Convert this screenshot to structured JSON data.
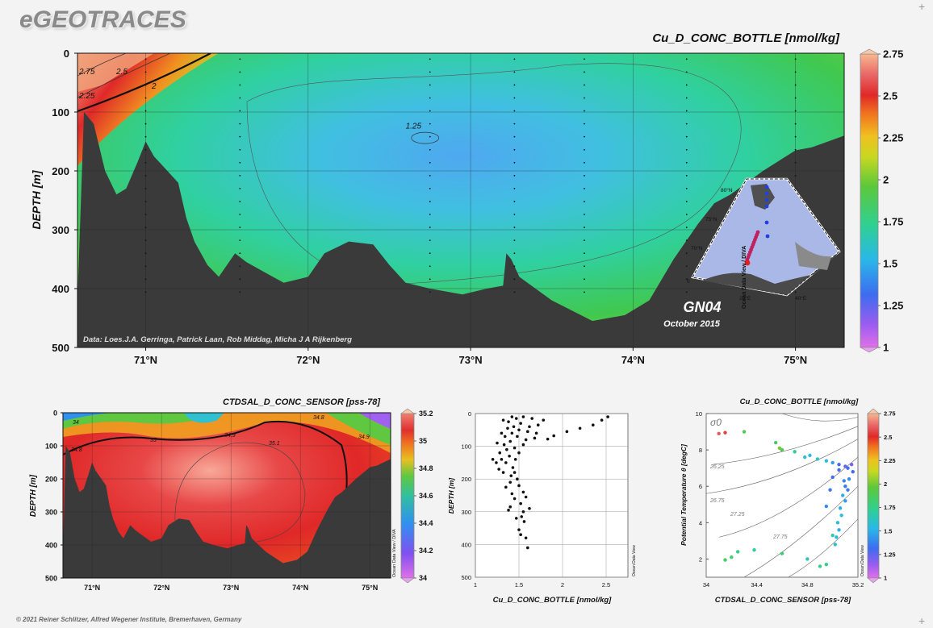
{
  "app_title": "eGEOTRACES",
  "copyright": "© 2021 Reiner Schlitzer, Alfred Wegener Institute, Bremerhaven, Germany",
  "colors": {
    "land": "#3a3a3a",
    "background": "#f3f3f3"
  },
  "chart_data": [
    {
      "id": "main-section",
      "type": "heatmap",
      "title": "Cu_D_CONC_BOTTLE [nmol/kg]",
      "ylabel": "DEPTH [m]",
      "xlabel": "",
      "x_ticks": [
        "71°N",
        "72°N",
        "73°N",
        "74°N",
        "75°N"
      ],
      "x_tick_values": [
        71,
        72,
        73,
        74,
        75
      ],
      "xlim": [
        70.58,
        75.3
      ],
      "y_ticks": [
        "0",
        "100",
        "200",
        "300",
        "400",
        "500"
      ],
      "y_tick_values": [
        0,
        100,
        200,
        300,
        400,
        500
      ],
      "ylim": [
        0,
        500
      ],
      "colorbar_ticks": [
        "1",
        "1.25",
        "1.5",
        "1.75",
        "2",
        "2.25",
        "2.5",
        "2.75"
      ],
      "colorbar_values": [
        1,
        1.25,
        1.5,
        1.75,
        2,
        2.25,
        2.5,
        2.75
      ],
      "contour_labels": [
        "2.75",
        "2.5",
        "2.25",
        "2",
        "1.25"
      ],
      "station_latitudes": [
        71,
        71.58,
        72.75,
        73.27,
        73.7,
        74.33,
        75.0
      ],
      "bottom_profile": [
        [
          70.58,
          420
        ],
        [
          70.62,
          100
        ],
        [
          70.68,
          120
        ],
        [
          70.75,
          200
        ],
        [
          70.82,
          240
        ],
        [
          70.88,
          230
        ],
        [
          70.95,
          185
        ],
        [
          71.0,
          150
        ],
        [
          71.05,
          175
        ],
        [
          71.15,
          205
        ],
        [
          71.2,
          220
        ],
        [
          71.25,
          280
        ],
        [
          71.3,
          320
        ],
        [
          71.38,
          360
        ],
        [
          71.45,
          380
        ],
        [
          71.55,
          340
        ],
        [
          71.62,
          355
        ],
        [
          71.75,
          375
        ],
        [
          71.85,
          390
        ],
        [
          72.0,
          380
        ],
        [
          72.1,
          340
        ],
        [
          72.25,
          320
        ],
        [
          72.4,
          325
        ],
        [
          72.5,
          360
        ],
        [
          72.6,
          390
        ],
        [
          72.75,
          400
        ],
        [
          72.95,
          410
        ],
        [
          73.1,
          400
        ],
        [
          73.2,
          395
        ],
        [
          73.22,
          340
        ],
        [
          73.25,
          350
        ],
        [
          73.3,
          380
        ],
        [
          73.35,
          390
        ],
        [
          73.5,
          420
        ],
        [
          73.75,
          455
        ],
        [
          73.95,
          445
        ],
        [
          74.1,
          420
        ],
        [
          74.25,
          350
        ],
        [
          74.4,
          290
        ],
        [
          74.5,
          255
        ],
        [
          74.6,
          240
        ],
        [
          74.8,
          200
        ],
        [
          75.0,
          165
        ],
        [
          75.1,
          160
        ],
        [
          75.3,
          140
        ]
      ],
      "source": "Data: Loes.J.A. Gerringa, Patrick Laan, Rob Middag, Micha J A Rijkenberg",
      "cruise": "GN04",
      "cruise_date": "October 2015",
      "inset_map_labels": [
        "80°N",
        "75°N",
        "70°N",
        "20°E",
        "40°E",
        "0"
      ],
      "vertical_credit": "Ocean Data View / DIVA"
    },
    {
      "id": "salinity-section",
      "type": "heatmap",
      "title": "CTDSAL_D_CONC_SENSOR [pss-78]",
      "ylabel": "DEPTH [m]",
      "xlabel": "",
      "x_ticks": [
        "71°N",
        "72°N",
        "73°N",
        "74°N",
        "75°N"
      ],
      "x_tick_values": [
        71,
        72,
        73,
        74,
        75
      ],
      "xlim": [
        70.58,
        75.3
      ],
      "y_ticks": [
        "0",
        "100",
        "200",
        "300",
        "400",
        "500"
      ],
      "y_tick_values": [
        0,
        100,
        200,
        300,
        400,
        500
      ],
      "ylim": [
        0,
        500
      ],
      "colorbar_ticks": [
        "34",
        "34.2",
        "34.4",
        "34.6",
        "34.8",
        "35",
        "35.2"
      ],
      "colorbar_values": [
        34,
        34.2,
        34.4,
        34.6,
        34.8,
        35,
        35.2
      ],
      "contour_labels": [
        "34",
        "34.8",
        "35",
        "34.9",
        "35.1",
        "34.9",
        "34.8"
      ],
      "vertical_credit": "Ocean Data View / DIVA"
    },
    {
      "id": "depth-profile",
      "type": "scatter",
      "title": "",
      "xlabel": "Cu_D_CONC_BOTTLE [nmol/kg]",
      "ylabel": "DEPTH [m]",
      "xlim": [
        1,
        2.75
      ],
      "ylim": [
        0,
        500
      ],
      "x_ticks": [
        "1",
        "1.5",
        "2",
        "2.5"
      ],
      "x_tick_values": [
        1,
        1.5,
        2,
        2.5
      ],
      "y_ticks": [
        "0",
        "100",
        "200",
        "300",
        "400",
        "500"
      ],
      "y_tick_values": [
        0,
        100,
        200,
        300,
        400,
        500
      ],
      "points": [
        [
          2.52,
          10
        ],
        [
          2.45,
          20
        ],
        [
          2.35,
          35
        ],
        [
          2.2,
          45
        ],
        [
          2.05,
          55
        ],
        [
          1.9,
          68
        ],
        [
          1.83,
          78
        ],
        [
          1.78,
          20
        ],
        [
          1.72,
          35
        ],
        [
          1.7,
          60
        ],
        [
          1.68,
          75
        ],
        [
          1.65,
          15
        ],
        [
          1.62,
          40
        ],
        [
          1.6,
          55
        ],
        [
          1.58,
          80
        ],
        [
          1.55,
          10
        ],
        [
          1.55,
          95
        ],
        [
          1.52,
          30
        ],
        [
          1.5,
          50
        ],
        [
          1.5,
          120
        ],
        [
          1.48,
          70
        ],
        [
          1.47,
          15
        ],
        [
          1.46,
          140
        ],
        [
          1.45,
          105
        ],
        [
          1.44,
          40
        ],
        [
          1.43,
          165
        ],
        [
          1.42,
          60
        ],
        [
          1.42,
          10
        ],
        [
          1.41,
          190
        ],
        [
          1.4,
          85
        ],
        [
          1.39,
          130
        ],
        [
          1.38,
          25
        ],
        [
          1.37,
          45
        ],
        [
          1.36,
          110
        ],
        [
          1.35,
          150
        ],
        [
          1.34,
          70
        ],
        [
          1.33,
          95
        ],
        [
          1.32,
          20
        ],
        [
          1.32,
          180
        ],
        [
          1.3,
          140
        ],
        [
          1.3,
          60
        ],
        [
          1.28,
          120
        ],
        [
          1.27,
          170
        ],
        [
          1.25,
          90
        ],
        [
          1.24,
          150
        ],
        [
          1.2,
          140
        ],
        [
          1.4,
          210
        ],
        [
          1.42,
          245
        ],
        [
          1.45,
          260
        ],
        [
          1.38,
          295
        ],
        [
          1.4,
          285
        ],
        [
          1.5,
          220
        ],
        [
          1.52,
          275
        ],
        [
          1.55,
          300
        ],
        [
          1.56,
          330
        ],
        [
          1.5,
          355
        ],
        [
          1.52,
          370
        ],
        [
          1.58,
          380
        ],
        [
          1.6,
          410
        ],
        [
          1.55,
          240
        ],
        [
          1.48,
          200
        ],
        [
          1.45,
          180
        ],
        [
          1.35,
          225
        ],
        [
          1.47,
          320
        ],
        [
          1.53,
          315
        ],
        [
          1.58,
          255
        ],
        [
          1.62,
          290
        ]
      ],
      "vertical_credit": "Ocean Data View"
    },
    {
      "id": "ts-diagram",
      "type": "scatter",
      "title": "Cu_D_CONC_BOTTLE [nmol/kg]",
      "xlabel": "CTDSAL_D_CONC_SENSOR [pss-78]",
      "ylabel": "Potential Temperature θ [degC]",
      "xlim": [
        34,
        35.2
      ],
      "ylim": [
        1,
        10
      ],
      "x_ticks": [
        "34",
        "34.4",
        "34.8",
        "35.2"
      ],
      "x_tick_values": [
        34,
        34.4,
        34.8,
        35.2
      ],
      "y_ticks": [
        "2",
        "4",
        "6",
        "8",
        "10"
      ],
      "y_tick_values": [
        2,
        4,
        6,
        8,
        10
      ],
      "colorbar_ticks": [
        "1",
        "1.25",
        "1.5",
        "1.75",
        "2",
        "2.25",
        "2.5",
        "2.75"
      ],
      "colorbar_values": [
        1,
        1.25,
        1.5,
        1.75,
        2,
        2.25,
        2.5,
        2.75
      ],
      "isopycnal_labels": [
        "σ0",
        "26.25",
        "26.75",
        "27.25",
        "27.75"
      ],
      "points": [
        [
          34.1,
          8.9,
          2.6
        ],
        [
          34.15,
          8.95,
          2.55
        ],
        [
          34.3,
          9.0,
          1.9
        ],
        [
          34.55,
          8.4,
          1.85
        ],
        [
          34.58,
          8.1,
          2.0
        ],
        [
          34.7,
          7.9,
          1.7
        ],
        [
          34.78,
          7.6,
          1.6
        ],
        [
          34.82,
          7.7,
          1.55
        ],
        [
          34.88,
          7.5,
          1.6
        ],
        [
          34.95,
          7.4,
          1.55
        ],
        [
          35.0,
          7.3,
          1.45
        ],
        [
          35.05,
          7.2,
          1.3
        ],
        [
          35.1,
          7.1,
          1.25
        ],
        [
          35.12,
          7.0,
          1.3
        ],
        [
          35.15,
          7.2,
          1.2
        ],
        [
          35.16,
          6.8,
          1.3
        ],
        [
          35.13,
          6.4,
          1.4
        ],
        [
          35.1,
          6.0,
          1.35
        ],
        [
          35.08,
          5.5,
          1.5
        ],
        [
          35.1,
          5.2,
          1.45
        ],
        [
          35.06,
          4.8,
          1.5
        ],
        [
          35.07,
          4.4,
          1.55
        ],
        [
          35.04,
          4.0,
          1.6
        ],
        [
          35.05,
          3.6,
          1.5
        ],
        [
          35.03,
          3.2,
          1.55
        ],
        [
          35.02,
          2.8,
          1.6
        ],
        [
          35.0,
          3.3,
          1.65
        ],
        [
          34.95,
          4.9,
          1.4
        ],
        [
          35.0,
          6.5,
          1.3
        ],
        [
          34.98,
          5.8,
          1.35
        ],
        [
          34.95,
          1.7,
          1.75
        ],
        [
          34.9,
          1.6,
          1.75
        ],
        [
          34.8,
          2.0,
          1.65
        ],
        [
          34.6,
          2.3,
          1.8
        ],
        [
          34.38,
          2.5,
          1.7
        ],
        [
          34.25,
          2.4,
          1.75
        ],
        [
          34.2,
          2.1,
          1.8
        ],
        [
          34.15,
          1.95,
          1.85
        ],
        [
          34.6,
          8.0,
          1.9
        ],
        [
          35.12,
          5.8,
          1.35
        ],
        [
          35.09,
          6.3,
          1.4
        ],
        [
          35.05,
          6.9,
          1.3
        ]
      ],
      "vertical_credit": "Ocean Data View"
    }
  ]
}
